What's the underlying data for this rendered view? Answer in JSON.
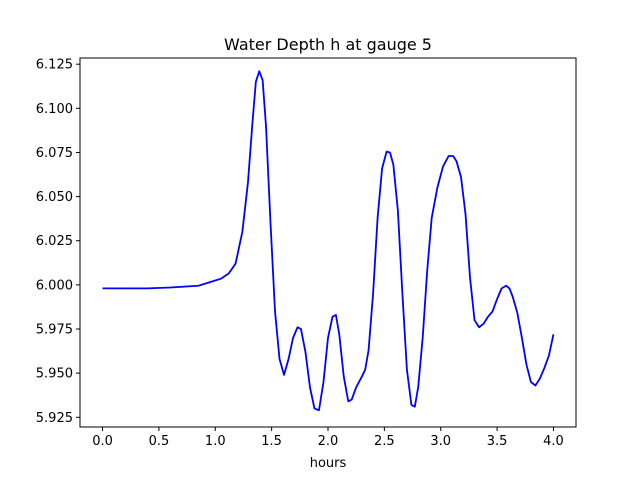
{
  "chart_data": {
    "type": "line",
    "title": "Water Depth h at gauge 5",
    "xlabel": "hours",
    "ylabel": "",
    "xlim": [
      -0.2,
      4.2
    ],
    "ylim": [
      5.9195,
      6.1285
    ],
    "xticks": [
      "0.0",
      "0.5",
      "1.0",
      "1.5",
      "2.0",
      "2.5",
      "3.0",
      "3.5",
      "4.0"
    ],
    "yticks": [
      "5.925",
      "5.950",
      "5.975",
      "6.000",
      "6.025",
      "6.050",
      "6.075",
      "6.100",
      "6.125"
    ],
    "grid": false,
    "series": [
      {
        "color": "#0000ff",
        "x": [
          0.0,
          0.4,
          0.6,
          0.85,
          0.95,
          1.05,
          1.12,
          1.18,
          1.24,
          1.29,
          1.33,
          1.36,
          1.39,
          1.42,
          1.45,
          1.49,
          1.53,
          1.57,
          1.61,
          1.65,
          1.69,
          1.73,
          1.76,
          1.8,
          1.84,
          1.88,
          1.92,
          1.96,
          2.0,
          2.04,
          2.07,
          2.1,
          2.14,
          2.18,
          2.21,
          2.25,
          2.3,
          2.33,
          2.36,
          2.4,
          2.44,
          2.48,
          2.52,
          2.55,
          2.58,
          2.62,
          2.66,
          2.7,
          2.74,
          2.77,
          2.8,
          2.84,
          2.88,
          2.92,
          2.97,
          3.02,
          3.07,
          3.11,
          3.14,
          3.18,
          3.22,
          3.26,
          3.3,
          3.34,
          3.38,
          3.42,
          3.46,
          3.5,
          3.54,
          3.58,
          3.61,
          3.64,
          3.68,
          3.72,
          3.76,
          3.8,
          3.84,
          3.88,
          3.92,
          3.96,
          4.0
        ],
        "y": [
          5.998,
          5.998,
          5.9985,
          5.9995,
          6.0015,
          6.0035,
          6.0065,
          6.012,
          6.03,
          6.058,
          6.092,
          6.115,
          6.121,
          6.116,
          6.09,
          6.035,
          5.985,
          5.958,
          5.949,
          5.958,
          5.97,
          5.976,
          5.975,
          5.962,
          5.942,
          5.93,
          5.929,
          5.945,
          5.97,
          5.982,
          5.983,
          5.972,
          5.948,
          5.934,
          5.935,
          5.942,
          5.948,
          5.952,
          5.963,
          5.995,
          6.038,
          6.066,
          6.0755,
          6.075,
          6.068,
          6.042,
          5.995,
          5.952,
          5.932,
          5.931,
          5.942,
          5.97,
          6.008,
          6.038,
          6.055,
          6.067,
          6.073,
          6.073,
          6.07,
          6.061,
          6.04,
          6.004,
          5.98,
          5.976,
          5.978,
          5.982,
          5.985,
          5.992,
          5.998,
          5.9995,
          5.998,
          5.993,
          5.984,
          5.97,
          5.955,
          5.945,
          5.943,
          5.947,
          5.953,
          5.96,
          5.972
        ]
      }
    ]
  }
}
